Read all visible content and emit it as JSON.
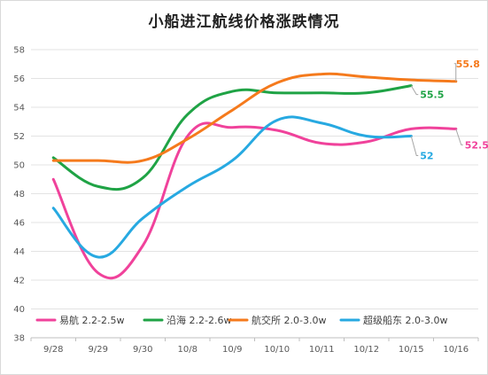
{
  "chart_data": {
    "type": "line",
    "title": "小船进江航线价格涨跌情况",
    "categories": [
      "9/28",
      "9/29",
      "9/30",
      "10/8",
      "10/9",
      "10/10",
      "10/11",
      "10/12",
      "10/15",
      "10/16"
    ],
    "ylim": [
      38,
      58
    ],
    "yticks": [
      38,
      40,
      42,
      44,
      46,
      48,
      50,
      52,
      54,
      56,
      58
    ],
    "grid": true,
    "legend_position": "bottom",
    "series": [
      {
        "name": "易航 2.2-2.5w",
        "color": "#f0429b",
        "values": [
          49.0,
          42.5,
          44.4,
          52.0,
          52.6,
          52.4,
          51.5,
          51.6,
          52.5,
          52.5
        ],
        "end_label": "52.5"
      },
      {
        "name": "沿海 2.2-2.6w",
        "color": "#1fa345",
        "values": [
          50.5,
          48.5,
          49.1,
          53.5,
          55.1,
          55.0,
          55.0,
          55.0,
          55.5,
          null
        ],
        "end_label": "55.5"
      },
      {
        "name": "航交所 2.0-3.0w",
        "color": "#f57a1c",
        "values": [
          50.3,
          50.3,
          50.3,
          51.8,
          53.8,
          55.7,
          56.3,
          56.1,
          55.9,
          55.8
        ],
        "end_label": "55.8"
      },
      {
        "name": "超级船东 2.0-3.0w",
        "color": "#27a9e1",
        "values": [
          47.0,
          43.6,
          46.3,
          48.5,
          50.3,
          53.1,
          52.9,
          52.0,
          52.0,
          null
        ],
        "end_label": "52"
      }
    ]
  }
}
